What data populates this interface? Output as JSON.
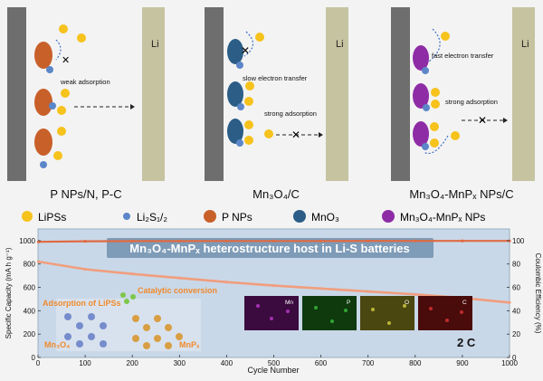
{
  "panels": [
    {
      "li": "Li",
      "caption": "P NPs/N, P-C",
      "notes": [
        "weak adsorption"
      ]
    },
    {
      "li": "Li",
      "caption": "Mn₃O₄/C",
      "notes": [
        "slow electron transfer",
        "strong adsorption"
      ]
    },
    {
      "li": "Li",
      "caption": "Mn₃O₄-MnPₓ NPs/C",
      "notes": [
        "fast electron transfer",
        "strong adsorption"
      ]
    }
  ],
  "legend": [
    {
      "label": "LiPSs",
      "color": "#f6c21c"
    },
    {
      "label": "Li₂S₁/₂",
      "color": "#5b86c8"
    },
    {
      "label": "P NPs",
      "color": "#c8602a"
    },
    {
      "label": "MnO₃",
      "color": "#2b5d86"
    },
    {
      "label": "Mn₃O₄-MnPₓ NPs",
      "color": "#8e2ca6"
    }
  ],
  "banner": "Mn₃O₄-MnPₓ heterostructure host in Li-S batteries",
  "labels": {
    "adsorption": "Adsorption of LiPSs",
    "catalytic": "Catalytic conversion",
    "mn3o4": "Mn₃O₄",
    "mnpx": "MnPₓ",
    "rate": "2 C",
    "eds": [
      "Mn",
      "P",
      "O",
      "C"
    ]
  },
  "chart_data": {
    "type": "line",
    "xlabel": "Cycle Number",
    "ylabel": "Specific Capacity (mA h g⁻¹)",
    "y2label": "Coulombic Efficiency (%)",
    "xlim": [
      0,
      1000
    ],
    "ylim": [
      0,
      1100
    ],
    "y2lim": [
      0,
      110
    ],
    "xticks": [
      "0",
      "100",
      "200",
      "300",
      "400",
      "500",
      "600",
      "700",
      "800",
      "900",
      "1000"
    ],
    "yticks": [
      "0",
      "200",
      "400",
      "600",
      "800",
      "1000"
    ],
    "y2ticks": [
      "0",
      "20",
      "40",
      "60",
      "80",
      "100"
    ],
    "series": [
      {
        "axis": "left",
        "x": [
          1,
          100,
          200,
          300,
          400,
          500,
          600,
          700,
          800,
          900,
          1000
        ],
        "y": [
          820,
          755,
          715,
          680,
          645,
          615,
          590,
          565,
          540,
          510,
          470
        ]
      },
      {
        "axis": "right",
        "x": [
          1,
          100,
          200,
          300,
          400,
          500,
          600,
          700,
          800,
          900,
          1000
        ],
        "y": [
          99,
          99.5,
          99.6,
          99.6,
          99.7,
          99.7,
          99.7,
          99.8,
          99.8,
          99.8,
          99.8
        ]
      }
    ]
  }
}
